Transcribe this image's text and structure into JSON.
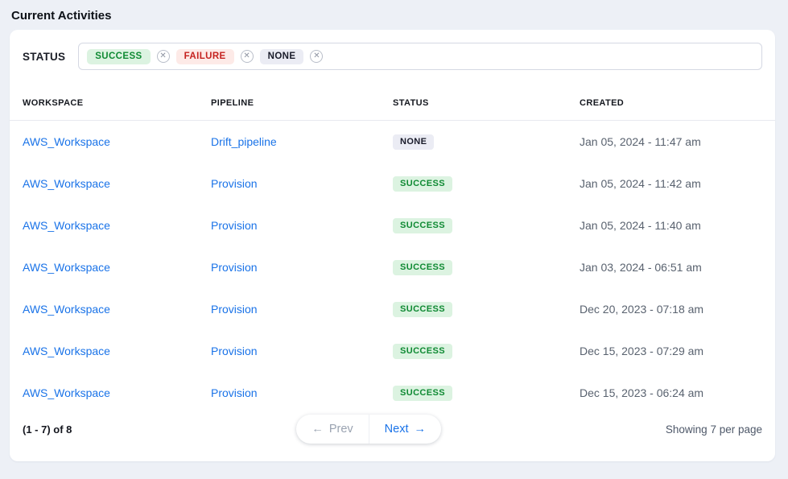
{
  "page": {
    "title": "Current Activities"
  },
  "filter": {
    "label": "STATUS",
    "chips": [
      {
        "label": "SUCCESS",
        "type": "success"
      },
      {
        "label": "FAILURE",
        "type": "failure"
      },
      {
        "label": "NONE",
        "type": "none"
      }
    ],
    "remove_icon": "✕"
  },
  "table": {
    "columns": [
      "WORKSPACE",
      "PIPELINE",
      "STATUS",
      "CREATED"
    ],
    "rows": [
      {
        "workspace": "AWS_Workspace",
        "pipeline": "Drift_pipeline",
        "status": "NONE",
        "status_type": "none",
        "created": "Jan 05, 2024 - 11:47 am"
      },
      {
        "workspace": "AWS_Workspace",
        "pipeline": "Provision",
        "status": "SUCCESS",
        "status_type": "success",
        "created": "Jan 05, 2024 - 11:42 am"
      },
      {
        "workspace": "AWS_Workspace",
        "pipeline": "Provision",
        "status": "SUCCESS",
        "status_type": "success",
        "created": "Jan 05, 2024 - 11:40 am"
      },
      {
        "workspace": "AWS_Workspace",
        "pipeline": "Provision",
        "status": "SUCCESS",
        "status_type": "success",
        "created": "Jan 03, 2024 - 06:51 am"
      },
      {
        "workspace": "AWS_Workspace",
        "pipeline": "Provision",
        "status": "SUCCESS",
        "status_type": "success",
        "created": "Dec 20, 2023 - 07:18 am"
      },
      {
        "workspace": "AWS_Workspace",
        "pipeline": "Provision",
        "status": "SUCCESS",
        "status_type": "success",
        "created": "Dec 15, 2023 - 07:29 am"
      },
      {
        "workspace": "AWS_Workspace",
        "pipeline": "Provision",
        "status": "SUCCESS",
        "status_type": "success",
        "created": "Dec 15, 2023 - 06:24 am"
      }
    ]
  },
  "pagination": {
    "range_text": "(1 - 7) of 8",
    "prev_arrow": "←",
    "prev_label": "Prev",
    "next_label": "Next",
    "next_arrow": "→",
    "per_page_text": "Showing 7 per page"
  },
  "colors": {
    "success_bg": "#dcf3e1",
    "success_text": "#0f8a33",
    "failure_bg": "#fdeae7",
    "failure_text": "#c5221f",
    "none_bg": "#ebecf4",
    "none_text": "#191b2a",
    "link": "#1a73e8"
  }
}
